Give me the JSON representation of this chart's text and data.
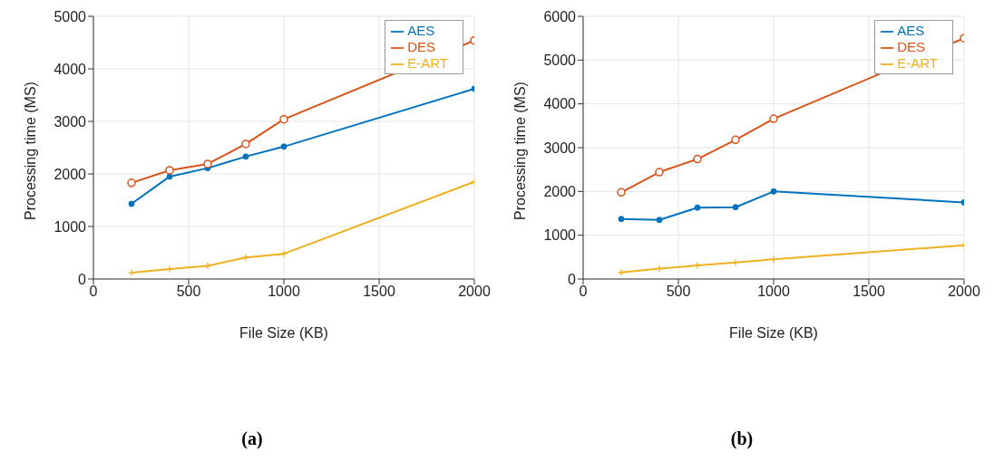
{
  "chart_data": [
    {
      "type": "line",
      "title": "(a)",
      "xlabel": "File Size (KB)",
      "ylabel": "Processing time (MS)",
      "x": [
        200,
        400,
        600,
        800,
        1000,
        2000
      ],
      "xlim": [
        0,
        2000
      ],
      "xticks": [
        0,
        500,
        1000,
        1500,
        2000
      ],
      "ylim": [
        0,
        5000
      ],
      "yticks": [
        0,
        1000,
        2000,
        3000,
        4000,
        5000
      ],
      "grid": true,
      "legend": "top right",
      "series": [
        {
          "name": "AES",
          "color": "#0072bd",
          "marker": "circle",
          "values": [
            1430,
            1950,
            2110,
            2330,
            2520,
            3620
          ]
        },
        {
          "name": "DES",
          "color": "#d95319",
          "marker": "circle-open",
          "values": [
            1830,
            2070,
            2190,
            2570,
            3040,
            4540
          ]
        },
        {
          "name": "E-ART",
          "color": "#edb120",
          "marker": "cross",
          "values": [
            120,
            190,
            250,
            410,
            480,
            1850
          ]
        }
      ]
    },
    {
      "type": "line",
      "title": "(b)",
      "xlabel": "File Size (KB)",
      "ylabel": "Processing time (MS)",
      "x": [
        200,
        400,
        600,
        800,
        1000,
        2000
      ],
      "xlim": [
        0,
        2000
      ],
      "xticks": [
        0,
        500,
        1000,
        1500,
        2000
      ],
      "ylim": [
        0,
        6000
      ],
      "yticks": [
        0,
        1000,
        2000,
        3000,
        4000,
        5000,
        6000
      ],
      "grid": true,
      "legend": "top right",
      "series": [
        {
          "name": "AES",
          "color": "#0072bd",
          "marker": "circle",
          "values": [
            1370,
            1350,
            1630,
            1640,
            2000,
            1750
          ]
        },
        {
          "name": "DES",
          "color": "#d95319",
          "marker": "circle-open",
          "values": [
            1980,
            2440,
            2740,
            3180,
            3660,
            5500
          ]
        },
        {
          "name": "E-ART",
          "color": "#edb120",
          "marker": "cross",
          "values": [
            150,
            240,
            310,
            380,
            450,
            770
          ]
        }
      ]
    }
  ]
}
